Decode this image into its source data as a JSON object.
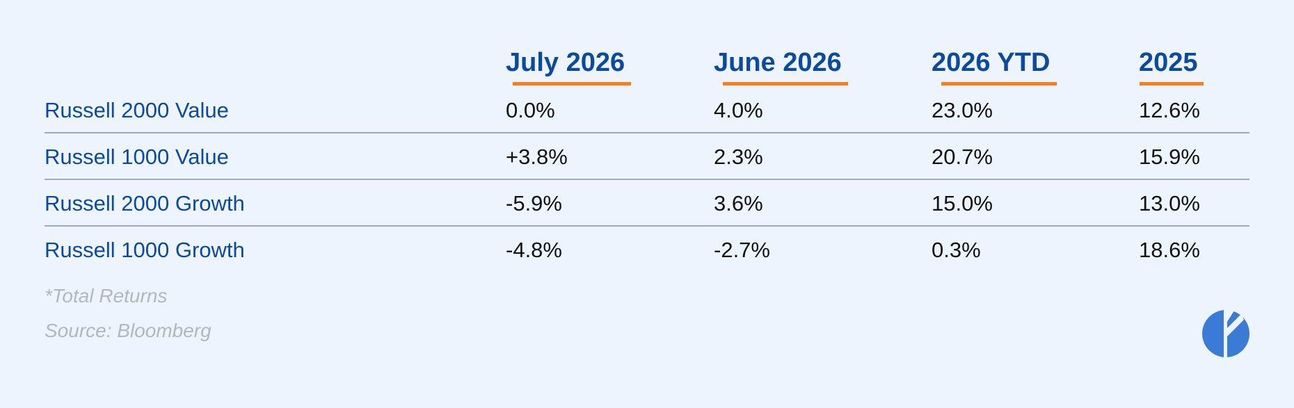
{
  "chart_data": {
    "type": "table",
    "columns": [
      "July 2026",
      "June 2026",
      "2026 YTD",
      "2025"
    ],
    "rows": [
      {
        "label": "Russell 2000 Value",
        "values": [
          "0.0%",
          "4.0%",
          "23.0%",
          "12.6%"
        ]
      },
      {
        "label": "Russell 1000 Value",
        "values": [
          "+3.8%",
          "2.3%",
          "20.7%",
          "15.9%"
        ]
      },
      {
        "label": "Russell 2000 Growth",
        "values": [
          "-5.9%",
          "3.6%",
          "15.0%",
          "13.0%"
        ]
      },
      {
        "label": "Russell 1000 Growth",
        "values": [
          "-4.8%",
          "-2.7%",
          "0.3%",
          "18.6%"
        ]
      }
    ],
    "footnotes": [
      "*Total Returns",
      "Source: Bloomberg"
    ]
  },
  "colors": {
    "background": "#edf4fd",
    "header": "#0c4a9e",
    "header_underline": "#f57f20",
    "row_label": "#0c4a9e",
    "cell": "#111111",
    "divider": "#9aaabb",
    "footnote": "#b4b8be",
    "logo": "#3a7bd5"
  },
  "logo": {
    "icon": "pie-leaf-logo-icon"
  }
}
